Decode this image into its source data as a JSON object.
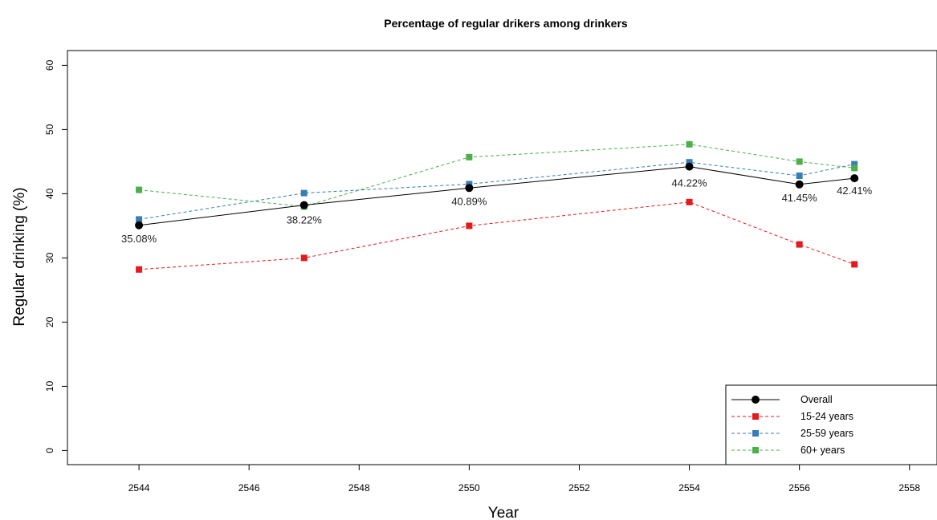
{
  "chart_data": {
    "type": "line",
    "title": "Percentage of regular drikers among drinkers",
    "xlabel": "Year",
    "ylabel": "Regular drinking (%)",
    "xlim": [
      2542.7,
      2558.5
    ],
    "ylim": [
      -2.2,
      62.3
    ],
    "xticks": [
      2544,
      2546,
      2548,
      2550,
      2552,
      2554,
      2556,
      2558
    ],
    "yticks": [
      0,
      10,
      20,
      30,
      40,
      50,
      60
    ],
    "grid": false,
    "legend_position": "bottom-right",
    "series": [
      {
        "name": "Overall",
        "color": "#000000",
        "line_style": "solid",
        "marker": "circle",
        "x": [
          2544,
          2547,
          2550,
          2554,
          2556,
          2557
        ],
        "y": [
          35.08,
          38.22,
          40.89,
          44.22,
          41.45,
          42.41
        ],
        "labels": [
          "35.08%",
          "38.22%",
          "40.89%",
          "44.22%",
          "41.45%",
          "42.41%"
        ]
      },
      {
        "name": "15-24 years",
        "color": "#e41a1c",
        "line_style": "dashed",
        "marker": "square",
        "x": [
          2544,
          2547,
          2550,
          2554,
          2556,
          2557
        ],
        "y": [
          28.2,
          30.0,
          35.0,
          38.7,
          32.1,
          29.0
        ]
      },
      {
        "name": "25-59 years",
        "color": "#377eb8",
        "line_style": "dashed",
        "marker": "square",
        "x": [
          2544,
          2547,
          2550,
          2554,
          2556,
          2557
        ],
        "y": [
          36.0,
          40.1,
          41.5,
          44.9,
          42.8,
          44.6
        ]
      },
      {
        "name": "60+ years",
        "color": "#4daf4a",
        "line_style": "dashed",
        "marker": "square",
        "x": [
          2544,
          2547,
          2550,
          2554,
          2556,
          2557
        ],
        "y": [
          40.6,
          38.0,
          45.7,
          47.7,
          45.0,
          44.0
        ]
      }
    ]
  }
}
